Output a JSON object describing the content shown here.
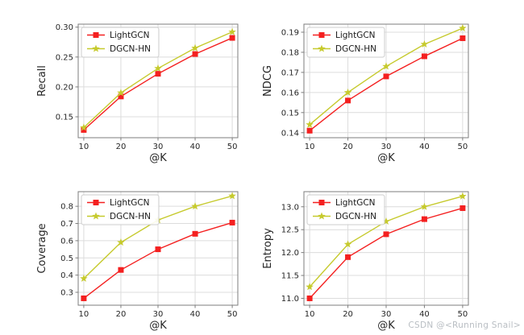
{
  "watermark": "CSDN @<Running Snail>",
  "colors": {
    "lightgcn": "#f42020",
    "dgcnhn": "#c6ca2d",
    "grid": "#dcdcdc",
    "spine": "#7d7d7d",
    "tick_label": "#262626",
    "legend_border": "#cccccc",
    "watermark": "#b9bec3",
    "background": "#ffffff"
  },
  "legend": {
    "items": [
      "LightGCN",
      "DGCN-HN"
    ],
    "position": "upper-left"
  },
  "chart_data": [
    {
      "type": "line",
      "name": "recall",
      "xlabel": "@K",
      "ylabel": "Recall",
      "x": [
        10,
        20,
        30,
        40,
        50
      ],
      "xtick_labels": [
        "10",
        "20",
        "30",
        "40",
        "50"
      ],
      "xlim": [
        8.5,
        51.5
      ],
      "yticks": [
        0.15,
        0.2,
        0.25,
        0.3
      ],
      "ytick_labels": [
        "0.15",
        "0.20",
        "0.25",
        "0.30"
      ],
      "ylim": [
        0.115,
        0.305
      ],
      "grid": true,
      "legend_position": "upper-left",
      "series": [
        {
          "name": "LightGCN",
          "marker": "square",
          "color_key": "lightgcn",
          "values": [
            0.128,
            0.184,
            0.222,
            0.255,
            0.282
          ]
        },
        {
          "name": "DGCN-HN",
          "marker": "star",
          "color_key": "dgcnhn",
          "values": [
            0.132,
            0.19,
            0.231,
            0.265,
            0.292
          ]
        }
      ]
    },
    {
      "type": "line",
      "name": "ndcg",
      "xlabel": "@K",
      "ylabel": "NDCG",
      "x": [
        10,
        20,
        30,
        40,
        50
      ],
      "xtick_labels": [
        "10",
        "20",
        "30",
        "40",
        "50"
      ],
      "xlim": [
        8.5,
        51.5
      ],
      "yticks": [
        0.14,
        0.15,
        0.16,
        0.17,
        0.18,
        0.19
      ],
      "ytick_labels": [
        "0.14",
        "0.15",
        "0.16",
        "0.17",
        "0.18",
        "0.19"
      ],
      "ylim": [
        0.1375,
        0.194
      ],
      "grid": true,
      "legend_position": "upper-left",
      "series": [
        {
          "name": "LightGCN",
          "marker": "square",
          "color_key": "lightgcn",
          "values": [
            0.141,
            0.156,
            0.168,
            0.178,
            0.187
          ]
        },
        {
          "name": "DGCN-HN",
          "marker": "star",
          "color_key": "dgcnhn",
          "values": [
            0.144,
            0.16,
            0.173,
            0.184,
            0.192
          ]
        }
      ]
    },
    {
      "type": "line",
      "name": "coverage",
      "xlabel": "@K",
      "ylabel": "Coverage",
      "x": [
        10,
        20,
        30,
        40,
        50
      ],
      "xtick_labels": [
        "10",
        "20",
        "30",
        "40",
        "50"
      ],
      "xlim": [
        8.5,
        51.5
      ],
      "yticks": [
        0.3,
        0.4,
        0.5,
        0.6,
        0.7,
        0.8
      ],
      "ytick_labels": [
        "0.3",
        "0.4",
        "0.5",
        "0.6",
        "0.7",
        "0.8"
      ],
      "ylim": [
        0.225,
        0.885
      ],
      "grid": true,
      "legend_position": "upper-left",
      "series": [
        {
          "name": "LightGCN",
          "marker": "square",
          "color_key": "lightgcn",
          "values": [
            0.265,
            0.43,
            0.55,
            0.64,
            0.705
          ]
        },
        {
          "name": "DGCN-HN",
          "marker": "star",
          "color_key": "dgcnhn",
          "values": [
            0.38,
            0.59,
            0.72,
            0.8,
            0.86
          ]
        }
      ]
    },
    {
      "type": "line",
      "name": "entropy",
      "xlabel": "@K",
      "ylabel": "Entropy",
      "x": [
        10,
        20,
        30,
        40,
        50
      ],
      "xtick_labels": [
        "10",
        "20",
        "30",
        "40",
        "50"
      ],
      "xlim": [
        8.5,
        51.5
      ],
      "yticks": [
        11.0,
        11.5,
        12.0,
        12.5,
        13.0
      ],
      "ytick_labels": [
        "11.0",
        "11.5",
        "12.0",
        "12.5",
        "13.0"
      ],
      "ylim": [
        10.85,
        13.33
      ],
      "grid": true,
      "legend_position": "upper-left",
      "series": [
        {
          "name": "LightGCN",
          "marker": "square",
          "color_key": "lightgcn",
          "values": [
            11.0,
            11.9,
            12.4,
            12.73,
            12.97
          ]
        },
        {
          "name": "DGCN-HN",
          "marker": "star",
          "color_key": "dgcnhn",
          "values": [
            11.25,
            12.18,
            12.68,
            13.0,
            13.23
          ]
        }
      ]
    }
  ]
}
